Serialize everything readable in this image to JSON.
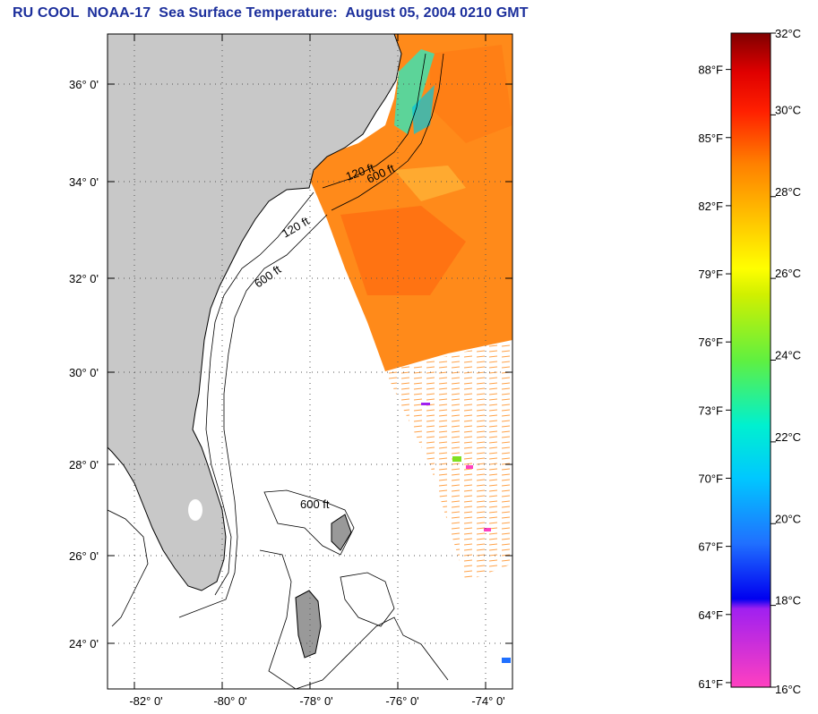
{
  "title": "RU COOL  NOAA-17  Sea Surface Temperature:  August 05, 2004 0210 GMT",
  "map": {
    "lat_labels": [
      "36° 0'",
      "34° 0'",
      "32° 0'",
      "30° 0'",
      "28° 0'",
      "26° 0'",
      "24° 0'"
    ],
    "lon_labels": [
      "-82° 0'",
      "-80° 0'",
      "-78° 0'",
      "-76° 0'",
      "-74° 0'"
    ],
    "isobath_labels": [
      "120 ft",
      "600 ft"
    ],
    "colors": {
      "land": "#c8c8c8",
      "ocean_nodata": "#ffffff",
      "sst_main": "#ff8a1a"
    }
  },
  "colorbar": {
    "fahrenheit_labels": [
      "88°F",
      "85°F",
      "82°F",
      "79°F",
      "76°F",
      "73°F",
      "70°F",
      "67°F",
      "64°F",
      "61°F"
    ],
    "celsius_labels": [
      "32°C",
      "30°C",
      "28°C",
      "26°C",
      "24°C",
      "22°C",
      "20°C",
      "18°C",
      "16°C"
    ],
    "range_c": [
      16,
      32
    ],
    "range_f": [
      61,
      89.6
    ]
  }
}
